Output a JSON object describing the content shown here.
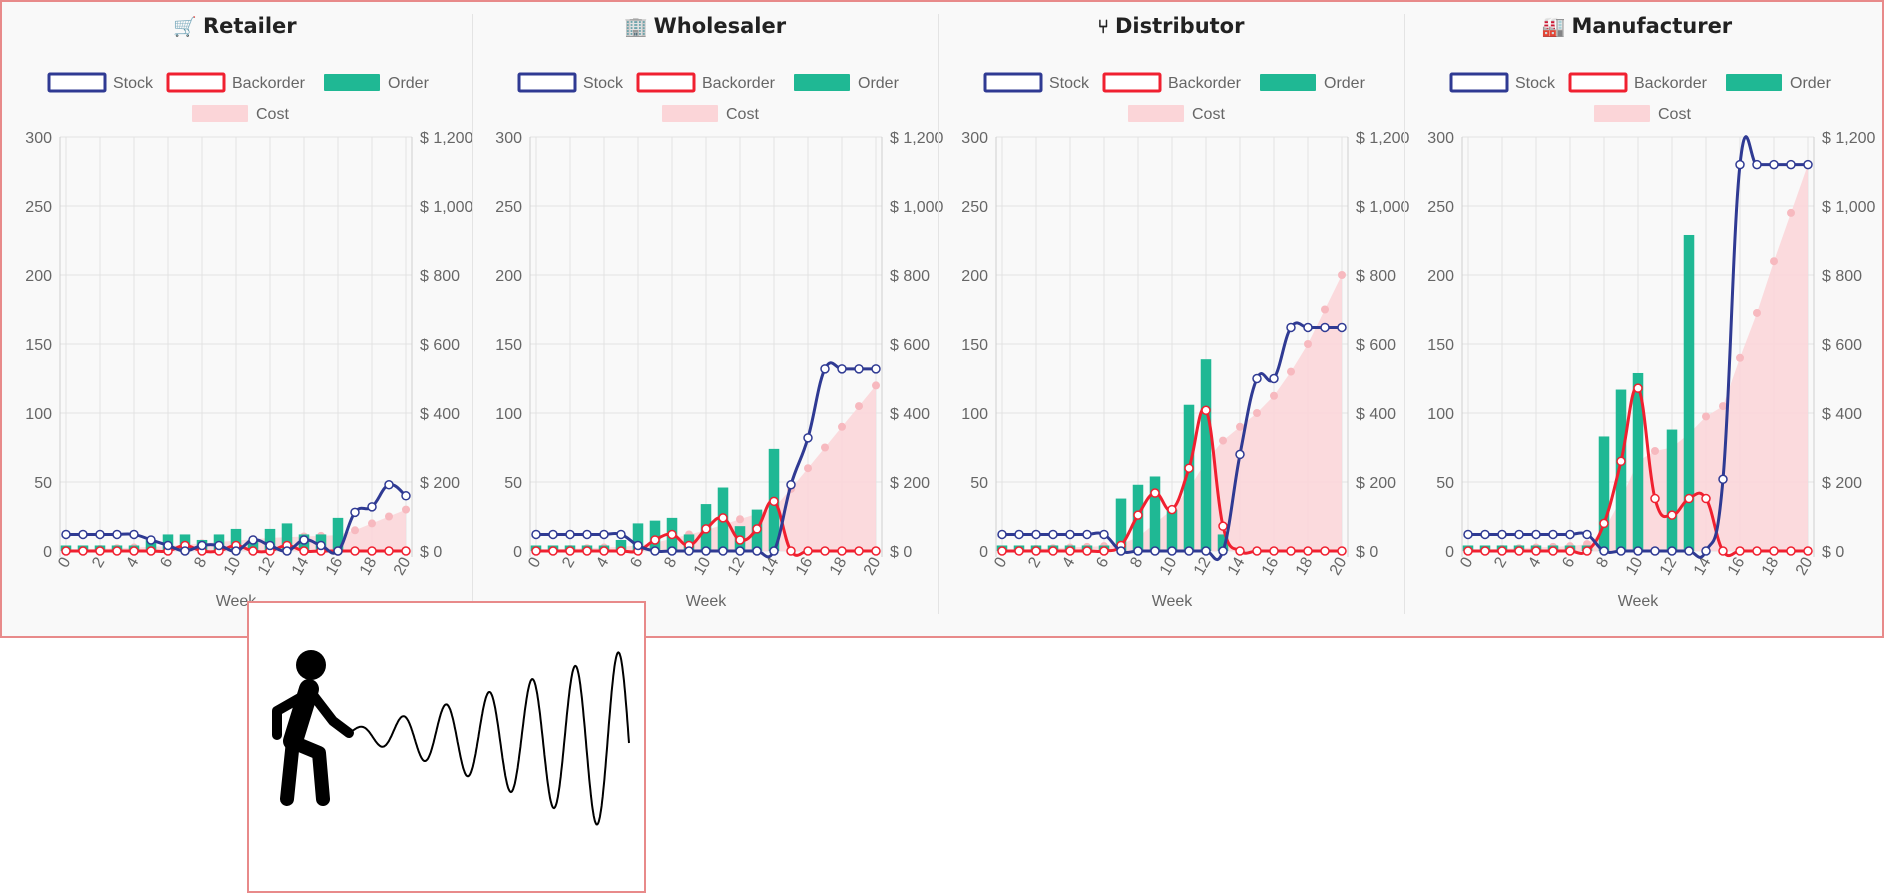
{
  "colors": {
    "stock": "#2f3a93",
    "backorder": "#f02030",
    "order": "#1fb894",
    "cost": "#fbd5d8",
    "cost_point": "#f7b9bf",
    "frame": "#e88a8a"
  },
  "icons": [
    "cart-icon",
    "building-icon",
    "fork-icon",
    "factory-icon"
  ],
  "legend": {
    "stock": "Stock",
    "backorder": "Backorder",
    "order": "Order",
    "cost": "Cost"
  },
  "chart_data": [
    {
      "type": "line",
      "title": "Retailer",
      "icon": "cart-icon",
      "xlabel": "Week",
      "x": [
        0,
        1,
        2,
        3,
        4,
        5,
        6,
        7,
        8,
        9,
        10,
        11,
        12,
        13,
        14,
        15,
        16,
        17,
        18,
        19,
        20
      ],
      "xticks": [
        "0",
        "2",
        "4",
        "6",
        "8",
        "10",
        "12",
        "14",
        "16",
        "18",
        "20"
      ],
      "y_left": {
        "range": [
          0,
          300
        ],
        "ticks": [
          "0",
          "50",
          "100",
          "150",
          "200",
          "250",
          "300"
        ]
      },
      "y_right": {
        "range": [
          0,
          1200
        ],
        "ticks": [
          "$ 0",
          "$ 200",
          "$ 400",
          "$ 600",
          "$ 800",
          "$ 1,000",
          "$ 1,200"
        ]
      },
      "legend_position": "top",
      "series": [
        {
          "name": "Stock",
          "axis": "left",
          "kind": "line",
          "values": [
            12,
            12,
            12,
            12,
            12,
            8,
            4,
            0,
            4,
            4,
            0,
            8,
            4,
            0,
            8,
            4,
            0,
            28,
            32,
            48,
            40
          ]
        },
        {
          "name": "Backorder",
          "axis": "left",
          "kind": "line",
          "values": [
            0,
            0,
            0,
            0,
            0,
            0,
            0,
            4,
            0,
            0,
            4,
            0,
            0,
            4,
            0,
            0,
            0,
            0,
            0,
            0,
            0
          ]
        },
        {
          "name": "Order",
          "axis": "left",
          "kind": "bar",
          "values": [
            4,
            4,
            4,
            4,
            4,
            8,
            12,
            12,
            8,
            12,
            16,
            8,
            16,
            20,
            12,
            12,
            24,
            0,
            0,
            0,
            0
          ]
        },
        {
          "name": "Cost",
          "axis": "right",
          "kind": "area",
          "values": [
            2,
            4,
            6,
            8,
            10,
            12,
            14,
            18,
            22,
            26,
            30,
            34,
            38,
            40,
            42,
            44,
            46,
            60,
            80,
            100,
            120
          ]
        }
      ]
    },
    {
      "type": "line",
      "title": "Wholesaler",
      "icon": "building-icon",
      "xlabel": "Week",
      "x": [
        0,
        1,
        2,
        3,
        4,
        5,
        6,
        7,
        8,
        9,
        10,
        11,
        12,
        13,
        14,
        15,
        16,
        17,
        18,
        19,
        20
      ],
      "xticks": [
        "0",
        "2",
        "4",
        "6",
        "8",
        "10",
        "12",
        "14",
        "16",
        "18",
        "20"
      ],
      "y_left": {
        "range": [
          0,
          300
        ],
        "ticks": [
          "0",
          "50",
          "100",
          "150",
          "200",
          "250",
          "300"
        ]
      },
      "y_right": {
        "range": [
          0,
          1200
        ],
        "ticks": [
          "$ 0",
          "$ 200",
          "$ 400",
          "$ 600",
          "$ 800",
          "$ 1,000",
          "$ 1,200"
        ]
      },
      "legend_position": "top",
      "series": [
        {
          "name": "Stock",
          "axis": "left",
          "kind": "line",
          "values": [
            12,
            12,
            12,
            12,
            12,
            12,
            4,
            0,
            0,
            0,
            0,
            0,
            0,
            0,
            0,
            48,
            82,
            132,
            132,
            132,
            132
          ]
        },
        {
          "name": "Backorder",
          "axis": "left",
          "kind": "line",
          "values": [
            0,
            0,
            0,
            0,
            0,
            0,
            0,
            8,
            12,
            4,
            16,
            24,
            8,
            16,
            36,
            0,
            0,
            0,
            0,
            0,
            0
          ]
        },
        {
          "name": "Order",
          "axis": "left",
          "kind": "bar",
          "values": [
            4,
            4,
            4,
            4,
            4,
            8,
            20,
            22,
            24,
            12,
            34,
            46,
            18,
            30,
            74,
            0,
            0,
            0,
            0,
            0,
            0
          ]
        },
        {
          "name": "Cost",
          "axis": "right",
          "kind": "area",
          "values": [
            2,
            4,
            6,
            8,
            10,
            12,
            16,
            24,
            36,
            48,
            60,
            76,
            92,
            108,
            124,
            180,
            240,
            300,
            360,
            420,
            480
          ]
        }
      ]
    },
    {
      "type": "line",
      "title": "Distributor",
      "icon": "fork-icon",
      "xlabel": "Week",
      "x": [
        0,
        1,
        2,
        3,
        4,
        5,
        6,
        7,
        8,
        9,
        10,
        11,
        12,
        13,
        14,
        15,
        16,
        17,
        18,
        19,
        20
      ],
      "xticks": [
        "0",
        "2",
        "4",
        "6",
        "8",
        "10",
        "12",
        "14",
        "16",
        "18",
        "20"
      ],
      "y_left": {
        "range": [
          0,
          300
        ],
        "ticks": [
          "0",
          "50",
          "100",
          "150",
          "200",
          "250",
          "300"
        ]
      },
      "y_right": {
        "range": [
          0,
          1200
        ],
        "ticks": [
          "$ 0",
          "$ 200",
          "$ 400",
          "$ 600",
          "$ 800",
          "$ 1,000",
          "$ 1,200"
        ]
      },
      "legend_position": "top",
      "series": [
        {
          "name": "Stock",
          "axis": "left",
          "kind": "line",
          "values": [
            12,
            12,
            12,
            12,
            12,
            12,
            12,
            0,
            0,
            0,
            0,
            0,
            0,
            0,
            70,
            125,
            125,
            162,
            162,
            162,
            162
          ]
        },
        {
          "name": "Backorder",
          "axis": "left",
          "kind": "line",
          "values": [
            0,
            0,
            0,
            0,
            0,
            0,
            0,
            4,
            26,
            42,
            30,
            60,
            102,
            18,
            0,
            0,
            0,
            0,
            0,
            0,
            0
          ]
        },
        {
          "name": "Order",
          "axis": "left",
          "kind": "bar",
          "values": [
            4,
            4,
            4,
            4,
            4,
            4,
            4,
            38,
            48,
            54,
            30,
            106,
            139,
            12,
            0,
            0,
            0,
            0,
            0,
            0,
            0
          ]
        },
        {
          "name": "Cost",
          "axis": "right",
          "kind": "area",
          "values": [
            2,
            4,
            6,
            8,
            10,
            12,
            14,
            20,
            40,
            80,
            120,
            180,
            260,
            320,
            360,
            400,
            450,
            520,
            600,
            700,
            800
          ]
        }
      ]
    },
    {
      "type": "line",
      "title": "Manufacturer",
      "icon": "factory-icon",
      "xlabel": "Week",
      "x": [
        0,
        1,
        2,
        3,
        4,
        5,
        6,
        7,
        8,
        9,
        10,
        11,
        12,
        13,
        14,
        15,
        16,
        17,
        18,
        19,
        20
      ],
      "xticks": [
        "0",
        "2",
        "4",
        "6",
        "8",
        "10",
        "12",
        "14",
        "16",
        "18",
        "20"
      ],
      "y_left": {
        "range": [
          0,
          300
        ],
        "ticks": [
          "0",
          "50",
          "100",
          "150",
          "200",
          "250",
          "300"
        ]
      },
      "y_right": {
        "range": [
          0,
          1200
        ],
        "ticks": [
          "$ 0",
          "$ 200",
          "$ 400",
          "$ 600",
          "$ 800",
          "$ 1,000",
          "$ 1,200"
        ]
      },
      "legend_position": "top",
      "series": [
        {
          "name": "Stock",
          "axis": "left",
          "kind": "line",
          "values": [
            12,
            12,
            12,
            12,
            12,
            12,
            12,
            12,
            0,
            0,
            0,
            0,
            0,
            0,
            0,
            52,
            280,
            280,
            280,
            280,
            280
          ]
        },
        {
          "name": "Backorder",
          "axis": "left",
          "kind": "line",
          "values": [
            0,
            0,
            0,
            0,
            0,
            0,
            0,
            0,
            20,
            65,
            118,
            38,
            26,
            38,
            38,
            0,
            0,
            0,
            0,
            0,
            0
          ]
        },
        {
          "name": "Order",
          "axis": "left",
          "kind": "bar",
          "values": [
            4,
            4,
            4,
            4,
            4,
            4,
            4,
            4,
            83,
            117,
            129,
            0,
            88,
            229,
            0,
            0,
            0,
            0,
            0,
            0,
            0
          ]
        },
        {
          "name": "Cost",
          "axis": "right",
          "kind": "area",
          "values": [
            2,
            4,
            6,
            8,
            10,
            12,
            14,
            20,
            60,
            150,
            260,
            290,
            300,
            340,
            390,
            420,
            560,
            690,
            840,
            980,
            1120
          ]
        }
      ]
    }
  ]
}
